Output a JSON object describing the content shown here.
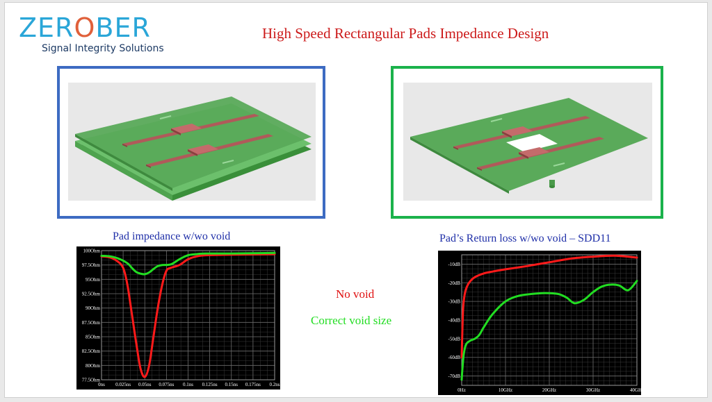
{
  "logo": {
    "text_left": "ZER",
    "text_mid": "O",
    "text_right": "BER",
    "tagline": "Signal Integrity Solutions"
  },
  "title": "High Speed Rectangular Pads Impedance Design",
  "legend": {
    "no_void": "No void",
    "correct_void": "Correct void size"
  },
  "colors": {
    "no_void": "#ff1a1a",
    "correct_void": "#22dd22",
    "panel_left": "#3d6bc2",
    "panel_right": "#1bb24b"
  },
  "chart_data": [
    {
      "type": "line",
      "title": "Pad impedance w/wo void",
      "xlabel": "",
      "ylabel": "",
      "xlim": [
        0,
        0.2
      ],
      "ylim": [
        77.5,
        100
      ],
      "x_ticks": [
        0,
        0.025,
        0.05,
        0.075,
        0.1,
        0.125,
        0.15,
        0.175,
        0.2
      ],
      "x_tick_labels": [
        "0ns",
        "0.025ns",
        "0.05ns",
        "0.075ns",
        "0.1ns",
        "0.125ns",
        "0.15ns",
        "0.175ns",
        "0.2ns"
      ],
      "y_ticks": [
        77.5,
        80,
        82.5,
        85,
        87.5,
        90,
        92.5,
        95,
        97.5,
        100
      ],
      "y_tick_labels": [
        "77.5Ohm",
        "80Ohm",
        "82.5Ohm",
        "85Ohm",
        "87.5Ohm",
        "90Ohm",
        "92.5Ohm",
        "95Ohm",
        "97.5Ohm",
        "100Ohm"
      ],
      "grid": true,
      "series": [
        {
          "key": "no_void",
          "x": [
            0,
            0.01,
            0.018,
            0.025,
            0.03,
            0.035,
            0.04,
            0.045,
            0.05,
            0.055,
            0.06,
            0.065,
            0.07,
            0.075,
            0.08,
            0.09,
            0.1,
            0.11,
            0.12,
            0.15,
            0.2
          ],
          "y": [
            99,
            98.8,
            98.2,
            97,
            94,
            89,
            84,
            79.5,
            78,
            80,
            85,
            90,
            94,
            96.5,
            97,
            97.5,
            98.5,
            99,
            99.2,
            99.3,
            99.4
          ]
        },
        {
          "key": "correct_void",
          "x": [
            0,
            0.01,
            0.02,
            0.03,
            0.035,
            0.04,
            0.045,
            0.05,
            0.055,
            0.06,
            0.065,
            0.07,
            0.08,
            0.09,
            0.1,
            0.11,
            0.12,
            0.15,
            0.2
          ],
          "y": [
            99.1,
            99,
            98.6,
            97.8,
            97,
            96.3,
            96,
            95.9,
            96.2,
            96.8,
            97.3,
            97.5,
            97.6,
            98.5,
            99.2,
            99.4,
            99.5,
            99.5,
            99.6
          ]
        }
      ]
    },
    {
      "type": "line",
      "title": "Pad’s Return loss w/wo void – SDD11",
      "xlabel": "",
      "ylabel": "",
      "xlim": [
        0,
        40
      ],
      "ylim": [
        -75,
        -5
      ],
      "x_ticks": [
        0,
        10,
        20,
        30,
        40
      ],
      "x_tick_labels": [
        "0Hz",
        "10GHz",
        "20GHz",
        "30GHz",
        "40GHz"
      ],
      "y_ticks": [
        -10,
        -20,
        -30,
        -40,
        -50,
        -60,
        -70
      ],
      "y_tick_labels": [
        "-10dB",
        "-20dB",
        "-30dB",
        "-40dB",
        "-50dB",
        "-60dB",
        "-70dB"
      ],
      "grid": true,
      "series": [
        {
          "key": "no_void",
          "x": [
            0,
            0.3,
            0.7,
            1.2,
            2,
            3,
            5,
            7,
            10,
            15,
            20,
            25,
            30,
            35,
            40
          ],
          "y": [
            -60,
            -35,
            -26,
            -22,
            -19,
            -17,
            -15,
            -14,
            -12.8,
            -11,
            -9,
            -7,
            -6,
            -5.5,
            -6.5
          ]
        },
        {
          "key": "correct_void",
          "x": [
            0,
            0.2,
            0.5,
            1,
            2,
            3,
            4,
            5,
            7,
            10,
            13,
            16,
            19,
            22,
            24,
            25,
            26,
            28,
            30,
            32,
            34,
            36,
            38,
            40
          ],
          "y": [
            -72,
            -65,
            -58,
            -53,
            -51,
            -50,
            -48,
            -44,
            -37,
            -30,
            -27,
            -26,
            -25.5,
            -26,
            -28,
            -30,
            -31,
            -29,
            -25,
            -22,
            -21,
            -21.5,
            -24,
            -19
          ]
        }
      ]
    }
  ]
}
